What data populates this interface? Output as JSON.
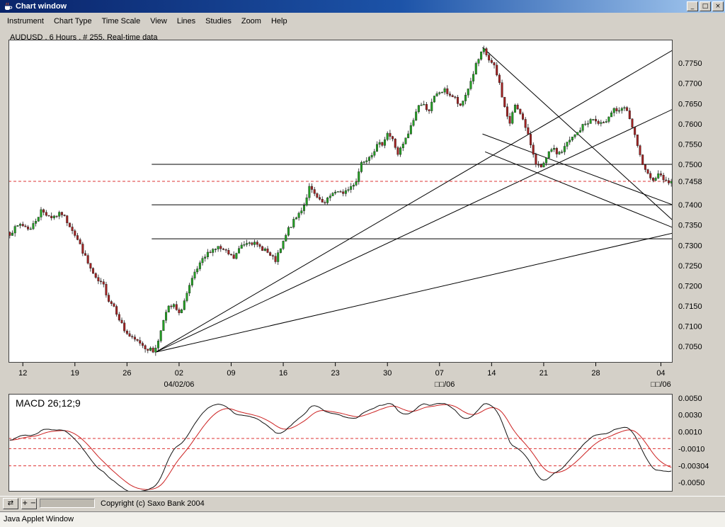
{
  "window": {
    "title": "Chart window",
    "controls": {
      "minimize": "_",
      "maximize": "□",
      "close": "×"
    }
  },
  "menu": {
    "items": [
      "Instrument",
      "Chart Type",
      "Time Scale",
      "View",
      "Lines",
      "Studies",
      "Zoom",
      "Help"
    ]
  },
  "chart": {
    "header": "AUDUSD , 6 Hours , # 255, Real-time data"
  },
  "toolbar": {
    "scroll_icon": "⇄",
    "zoom_icon": "+ −",
    "copyright": "Copyright (c) Saxo Bank 2004"
  },
  "statusbar": {
    "text": "Java Applet Window"
  },
  "colors": {
    "up": "#23a123",
    "down": "#a22222",
    "wick": "#1a1a1a",
    "line": "#000000",
    "dashed": "#dd3333",
    "current": "#cc0000",
    "pane_border": "#404040",
    "macd_line": "#111111",
    "signal_line": "#cc2222"
  },
  "chart_data": {
    "type": "candlestick",
    "instrument": "AUDUSD",
    "interval": "6 Hours",
    "bars": 255,
    "current_price": 0.7458,
    "current_price_label": "0.7458",
    "seed": 7,
    "noise": 0.0012,
    "wick_noise": 0.0009,
    "price_axis": {
      "min": 0.701,
      "max": 0.7808,
      "ticks": [
        0.775,
        0.77,
        0.765,
        0.76,
        0.755,
        0.75,
        0.74,
        0.735,
        0.73,
        0.725,
        0.72,
        0.715,
        0.71,
        0.705
      ]
    },
    "x_axis": {
      "labels": [
        {
          "t": "12",
          "i": 5
        },
        {
          "t": "19",
          "i": 25
        },
        {
          "t": "26",
          "i": 45
        },
        {
          "t": "02",
          "i": 65
        },
        {
          "t": "09",
          "i": 85
        },
        {
          "t": "16",
          "i": 105
        },
        {
          "t": "23",
          "i": 125
        },
        {
          "t": "30",
          "i": 145
        },
        {
          "t": "07",
          "i": 165
        },
        {
          "t": "14",
          "i": 185
        },
        {
          "t": "21",
          "i": 205
        },
        {
          "t": "28",
          "i": 225
        },
        {
          "t": "04",
          "i": 250
        }
      ],
      "dates": [
        {
          "t": "04/02/06",
          "i": 65
        },
        {
          "t": "□□/06",
          "i": 167
        },
        {
          "t": "□□/06",
          "i": 250
        }
      ]
    },
    "levels": [
      {
        "price": 0.75,
        "from": 55
      },
      {
        "price": 0.74,
        "from": 55
      },
      {
        "price": 0.7316,
        "from": 55
      }
    ],
    "trendlines": [
      {
        "i1": 56.5,
        "p1": 0.7036,
        "i2": 255,
        "p2": 0.733
      },
      {
        "i1": 56.5,
        "p1": 0.7036,
        "i2": 255,
        "p2": 0.7636
      },
      {
        "i1": 56.5,
        "p1": 0.7036,
        "i2": 255,
        "p2": 0.7782
      },
      {
        "i1": 182,
        "p1": 0.7789,
        "i2": 255,
        "p2": 0.7362
      },
      {
        "i1": 182,
        "p1": 0.7575,
        "i2": 255,
        "p2": 0.74
      },
      {
        "i1": 183,
        "p1": 0.7531,
        "i2": 255,
        "p2": 0.7344
      }
    ],
    "waypoints": [
      [
        0,
        0.733
      ],
      [
        4,
        0.7352
      ],
      [
        8,
        0.734
      ],
      [
        12,
        0.7385
      ],
      [
        16,
        0.737
      ],
      [
        20,
        0.7378
      ],
      [
        24,
        0.734
      ],
      [
        27,
        0.73
      ],
      [
        30,
        0.7255
      ],
      [
        33,
        0.7215
      ],
      [
        36,
        0.72
      ],
      [
        38,
        0.7165
      ],
      [
        40,
        0.715
      ],
      [
        42,
        0.712
      ],
      [
        44,
        0.709
      ],
      [
        47,
        0.7068
      ],
      [
        50,
        0.706
      ],
      [
        52,
        0.7048
      ],
      [
        55,
        0.7038
      ],
      [
        57,
        0.7062
      ],
      [
        59,
        0.712
      ],
      [
        61,
        0.7145
      ],
      [
        63,
        0.715
      ],
      [
        65,
        0.7128
      ],
      [
        68,
        0.718
      ],
      [
        71,
        0.723
      ],
      [
        74,
        0.7262
      ],
      [
        77,
        0.7288
      ],
      [
        80,
        0.7295
      ],
      [
        83,
        0.7282
      ],
      [
        86,
        0.7268
      ],
      [
        89,
        0.73
      ],
      [
        92,
        0.7312
      ],
      [
        95,
        0.7298
      ],
      [
        98,
        0.729
      ],
      [
        100,
        0.7272
      ],
      [
        102,
        0.7262
      ],
      [
        104,
        0.729
      ],
      [
        107,
        0.734
      ],
      [
        110,
        0.7368
      ],
      [
        113,
        0.74
      ],
      [
        115,
        0.7442
      ],
      [
        117,
        0.7425
      ],
      [
        119,
        0.7408
      ],
      [
        121,
        0.7402
      ],
      [
        124,
        0.7432
      ],
      [
        127,
        0.7428
      ],
      [
        130,
        0.7438
      ],
      [
        133,
        0.746
      ],
      [
        135,
        0.7505
      ],
      [
        137,
        0.7515
      ],
      [
        139,
        0.7528
      ],
      [
        141,
        0.7545
      ],
      [
        143,
        0.7552
      ],
      [
        145,
        0.7578
      ],
      [
        147,
        0.756
      ],
      [
        149,
        0.7526
      ],
      [
        151,
        0.7548
      ],
      [
        153,
        0.7575
      ],
      [
        155,
        0.761
      ],
      [
        157,
        0.7648
      ],
      [
        159,
        0.7645
      ],
      [
        161,
        0.7635
      ],
      [
        163,
        0.7665
      ],
      [
        165,
        0.7678
      ],
      [
        167,
        0.7682
      ],
      [
        169,
        0.7672
      ],
      [
        171,
        0.7662
      ],
      [
        173,
        0.764
      ],
      [
        175,
        0.7672
      ],
      [
        177,
        0.7705
      ],
      [
        179,
        0.7745
      ],
      [
        181,
        0.7772
      ],
      [
        182,
        0.7782
      ],
      [
        184,
        0.7758
      ],
      [
        186,
        0.774
      ],
      [
        188,
        0.77
      ],
      [
        190,
        0.764
      ],
      [
        192,
        0.76
      ],
      [
        194,
        0.7648
      ],
      [
        196,
        0.763
      ],
      [
        198,
        0.7588
      ],
      [
        200,
        0.755
      ],
      [
        202,
        0.7505
      ],
      [
        204,
        0.7488
      ],
      [
        206,
        0.7512
      ],
      [
        208,
        0.754
      ],
      [
        210,
        0.7528
      ],
      [
        212,
        0.7532
      ],
      [
        214,
        0.7552
      ],
      [
        216,
        0.7565
      ],
      [
        218,
        0.7578
      ],
      [
        220,
        0.7595
      ],
      [
        222,
        0.7605
      ],
      [
        224,
        0.7612
      ],
      [
        226,
        0.76
      ],
      [
        228,
        0.7598
      ],
      [
        230,
        0.7622
      ],
      [
        232,
        0.7638
      ],
      [
        234,
        0.7628
      ],
      [
        236,
        0.764
      ],
      [
        238,
        0.7615
      ],
      [
        240,
        0.7568
      ],
      [
        242,
        0.752
      ],
      [
        244,
        0.7482
      ],
      [
        246,
        0.7462
      ],
      [
        248,
        0.747
      ],
      [
        250,
        0.7478
      ],
      [
        252,
        0.7455
      ],
      [
        254,
        0.7458
      ]
    ],
    "macd": {
      "label": "MACD 26;12;9",
      "params": [
        26,
        12,
        9
      ],
      "axis": {
        "min": -0.0061,
        "max": 0.0055,
        "ticks": [
          0.005,
          0.003,
          0.001,
          -0.001,
          -0.005
        ]
      },
      "current": -0.00304,
      "current_label": "-0.00304",
      "alert_levels": [
        0.0002,
        -0.001,
        -0.00304
      ]
    }
  }
}
